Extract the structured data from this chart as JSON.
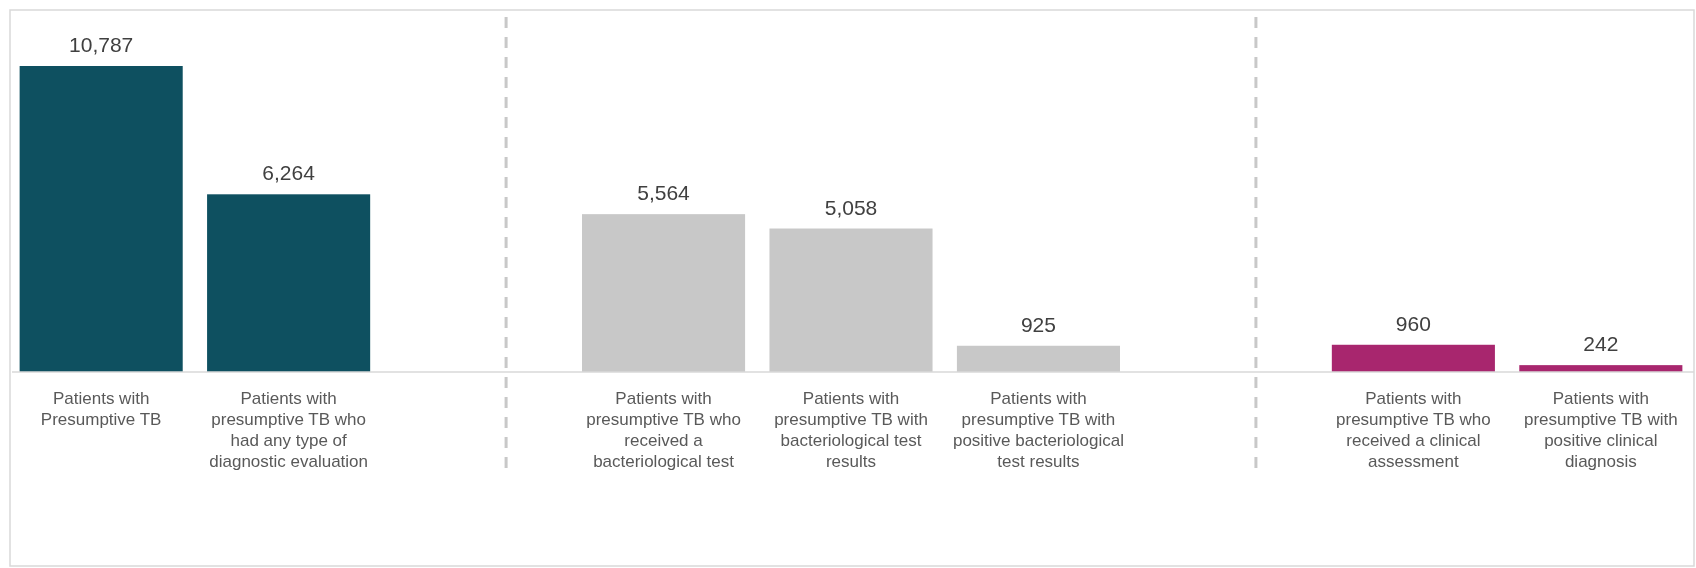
{
  "chart_data": {
    "type": "bar",
    "categories": [
      "Patients with Presumptive TB",
      "Patients with presumptive TB who had any type of diagnostic evaluation",
      null,
      "Patients with presumptive TB who received a bacteriological test",
      "Patients with presumptive TB with bacteriological test results",
      "Patients with presumptive TB with positive bacteriological test results",
      null,
      "Patients with presumptive TB who received a clinical assessment",
      "Patients with presumptive TB with positive clinical diagnosis"
    ],
    "values": [
      10787,
      6264,
      null,
      5564,
      5058,
      925,
      null,
      960,
      242
    ],
    "colors": [
      "#0e5060",
      "#0e5060",
      null,
      "#c8c8c8",
      "#c8c8c8",
      "#c8c8c8",
      null,
      "#a8266e",
      "#a8266e"
    ],
    "value_labels": [
      "10,787",
      "6,264",
      null,
      "5,564",
      "5,058",
      "925",
      null,
      "960",
      "242"
    ]
  }
}
